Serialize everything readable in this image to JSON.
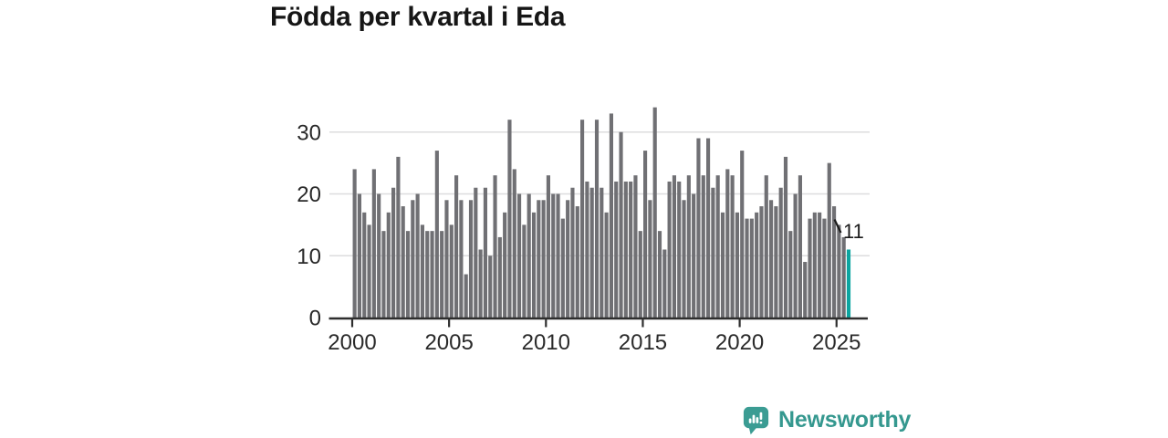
{
  "title": "Födda per kvartal i Eda",
  "annotation": {
    "label": "11"
  },
  "branding": {
    "wordmark": "Newsworthy",
    "icon": "newsworthy-speech-bubble-chart-icon"
  },
  "colors": {
    "bar": "#707074",
    "highlight": "#0BA5A0",
    "axis": "#2E2E2E",
    "grid": "#DCDCDE",
    "tick_text": "#2A2A2A",
    "annotation_text": "#1A1A1A",
    "brand": "#3B9C93"
  },
  "chart_data": {
    "type": "bar",
    "title": "Födda per kvartal i Eda",
    "frequency": "quarterly",
    "series_start": "2000-Q1",
    "series_end": "2025-Q3",
    "x_tick_labels": [
      "2000",
      "2005",
      "2010",
      "2015",
      "2020",
      "2025"
    ],
    "y_ticks": [
      0,
      10,
      20,
      30
    ],
    "ylim": [
      0,
      35
    ],
    "grid": "horizontal",
    "legend": "none",
    "values": [
      24,
      20,
      17,
      15,
      24,
      20,
      14,
      17,
      21,
      26,
      18,
      14,
      19,
      20,
      15,
      14,
      14,
      27,
      14,
      19,
      15,
      23,
      19,
      7,
      19,
      21,
      11,
      21,
      10,
      23,
      13,
      17,
      32,
      24,
      20,
      15,
      20,
      17,
      19,
      19,
      23,
      20,
      20,
      16,
      19,
      21,
      18,
      32,
      22,
      21,
      32,
      21,
      17,
      33,
      22,
      30,
      22,
      22,
      23,
      14,
      27,
      19,
      34,
      14,
      11,
      22,
      23,
      22,
      19,
      23,
      20,
      29,
      23,
      29,
      21,
      23,
      17,
      24,
      23,
      17,
      27,
      16,
      16,
      17,
      18,
      23,
      19,
      18,
      21,
      26,
      14,
      20,
      23,
      9,
      16,
      17,
      17,
      16,
      25,
      18,
      15,
      13,
      11
    ],
    "highlight_last_bar": true,
    "highlight_value_label": "11"
  }
}
